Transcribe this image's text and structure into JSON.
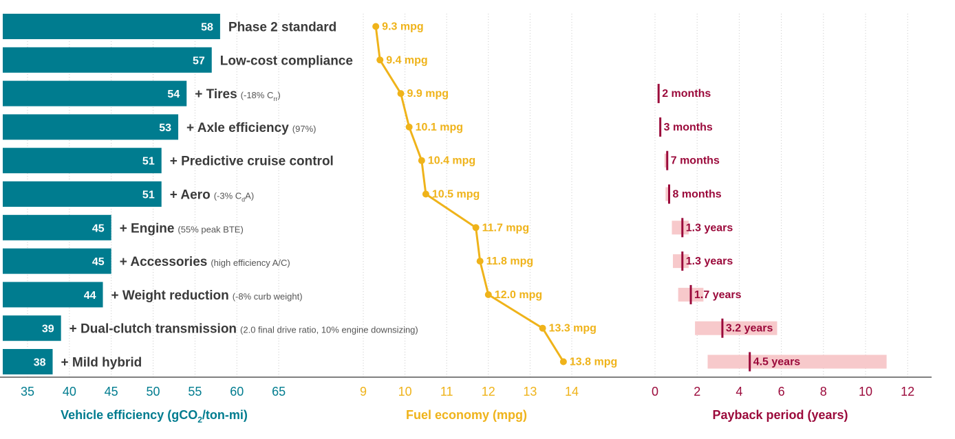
{
  "colors": {
    "efficiency": "#007C8F",
    "fuel": "#EFB31A",
    "payback": "#9B0A3B",
    "payback_range": "#F7C9CB",
    "text": "#3a3a3a",
    "grid": "#c8c8c8"
  },
  "chart_data": [
    {
      "type": "bar",
      "orientation": "horizontal",
      "categories": [
        {
          "main": "Phase 2 standard",
          "note": ""
        },
        {
          "main": "Low-cost compliance",
          "note": ""
        },
        {
          "main": "+ Tires",
          "note": "(-18% C",
          "note_sub": "rr",
          "note_tail": ")"
        },
        {
          "main": "+ Axle efficiency",
          "note": "(97%)"
        },
        {
          "main": "+ Predictive cruise control",
          "note": ""
        },
        {
          "main": "+ Aero",
          "note": "(-3% C",
          "note_sub": "d",
          "note_tail": "A)"
        },
        {
          "main": "+ Engine",
          "note": "(55% peak BTE)"
        },
        {
          "main": "+ Accessories",
          "note": "(high efficiency A/C)"
        },
        {
          "main": "+ Weight reduction",
          "note": "(-8% curb weight)"
        },
        {
          "main": "+ Dual-clutch transmission",
          "note": "(2.0 final drive ratio, 10% engine downsizing)"
        },
        {
          "main": "+ Mild hybrid",
          "note": ""
        }
      ],
      "values": [
        58,
        57,
        54,
        53,
        51,
        51,
        45,
        45,
        44,
        39,
        38
      ],
      "xlim": [
        35,
        65
      ],
      "ticks": [
        "35",
        "40",
        "45",
        "50",
        "55",
        "60",
        "65"
      ],
      "xlabel": {
        "pre": "Vehicle efficiency (gCO",
        "sub": "2",
        "post": "/ton-mi)"
      }
    },
    {
      "type": "line",
      "values": [
        9.3,
        9.4,
        9.9,
        10.1,
        10.4,
        10.5,
        11.7,
        11.8,
        12.0,
        13.3,
        13.8
      ],
      "labels": [
        "9.3 mpg",
        "9.4 mpg",
        "9.9 mpg",
        "10.1 mpg",
        "10.4 mpg",
        "10.5 mpg",
        "11.7 mpg",
        "11.8 mpg",
        "12.0 mpg",
        "13.3 mpg",
        "13.8 mpg"
      ],
      "xlim": [
        9,
        14
      ],
      "ticks": [
        "9",
        "10",
        "11",
        "12",
        "13",
        "14"
      ],
      "xlabel": "Fuel economy (mpg)"
    },
    {
      "type": "range-marker",
      "points": [
        {
          "row": 2,
          "value": 0.17,
          "low": 0.17,
          "high": 0.17,
          "label": "2 months"
        },
        {
          "row": 3,
          "value": 0.25,
          "low": 0.25,
          "high": 0.25,
          "label": "3 months"
        },
        {
          "row": 4,
          "value": 0.58,
          "low": 0.45,
          "high": 0.6,
          "label": "7 months"
        },
        {
          "row": 5,
          "value": 0.67,
          "low": 0.5,
          "high": 0.7,
          "label": "8 months"
        },
        {
          "row": 6,
          "value": 1.3,
          "low": 0.8,
          "high": 1.6,
          "label": "1.3 years"
        },
        {
          "row": 7,
          "value": 1.3,
          "low": 0.85,
          "high": 1.6,
          "label": "1.3 years"
        },
        {
          "row": 8,
          "value": 1.7,
          "low": 1.1,
          "high": 2.3,
          "label": "1.7 years"
        },
        {
          "row": 9,
          "value": 3.2,
          "low": 1.9,
          "high": 5.8,
          "label": "3.2 years"
        },
        {
          "row": 10,
          "value": 4.5,
          "low": 2.5,
          "high": 11.0,
          "label": "4.5 years"
        }
      ],
      "xlim": [
        0,
        12
      ],
      "ticks": [
        "0",
        "2",
        "4",
        "6",
        "8",
        "10",
        "12"
      ],
      "xlabel": "Payback period (years)"
    }
  ]
}
